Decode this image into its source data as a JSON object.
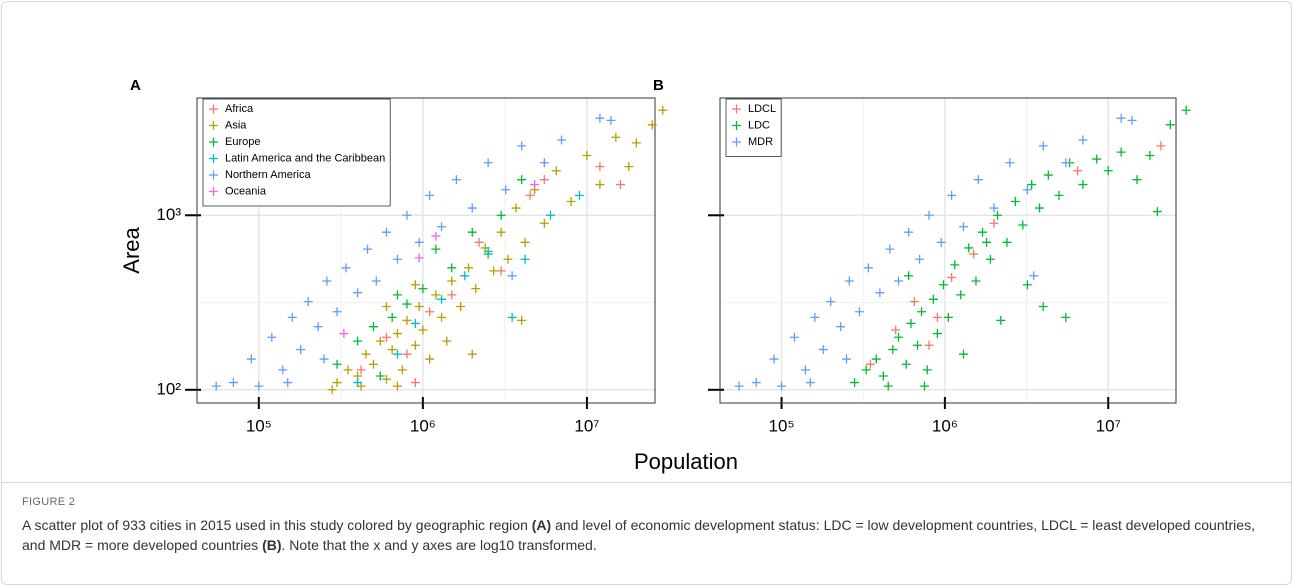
{
  "figure": {
    "xlabel": "Population",
    "label": "FIGURE 2",
    "caption": [
      {
        "text": "A scatter plot of 933 cities in 2015 used in this study colored by geographic region ",
        "bold": false
      },
      {
        "text": "(A)",
        "bold": true
      },
      {
        "text": " and level of economic development status: LDC = low development countries, LDCL = least developed countries, and MDR = more developed countries ",
        "bold": false
      },
      {
        "text": "(B)",
        "bold": true
      },
      {
        "text": ". Note that the x and y axes are log10 transformed.",
        "bold": false
      }
    ]
  },
  "chart_data": [
    {
      "type": "scatter",
      "panel": "A",
      "ylabel": "Area",
      "log_x": true,
      "log_y": true,
      "grid": true,
      "legend": "top-left",
      "ytick_labels": true,
      "xlim": [
        42000,
        26000000
      ],
      "ylim": [
        84,
        4700
      ],
      "xticks": [
        {
          "value": 100000,
          "label": "10⁵"
        },
        {
          "value": 1000000,
          "label": "10⁶"
        },
        {
          "value": 10000000,
          "label": "10⁷"
        }
      ],
      "yticks": [
        {
          "value": 100,
          "label": "10²"
        },
        {
          "value": 1000,
          "label": "10³"
        }
      ],
      "xminor": [
        316228,
        3162278
      ],
      "yminor": [
        316
      ],
      "series": [
        {
          "name": "Africa",
          "color": "#F8766D",
          "x": [
            420000,
            600000,
            800000,
            1100000,
            1500000,
            2200000,
            3000000,
            4500000,
            5500000,
            12000000,
            16000000,
            900000
          ],
          "values": [
            130,
            200,
            160,
            280,
            350,
            700,
            480,
            1300,
            1600,
            1900,
            1500,
            110
          ]
        },
        {
          "name": "Asia",
          "color": "#B79F00",
          "x": [
            300000,
            350000,
            400000,
            450000,
            500000,
            550000,
            600000,
            650000,
            700000,
            750000,
            800000,
            900000,
            950000,
            1000000,
            1100000,
            1200000,
            1300000,
            1500000,
            1700000,
            1900000,
            2100000,
            2400000,
            2700000,
            3000000,
            3300000,
            3700000,
            4200000,
            4800000,
            5500000,
            6500000,
            8000000,
            10000000,
            12000000,
            15000000,
            18000000,
            20000000,
            25000000,
            29000000,
            280000,
            420000,
            700000,
            1400000,
            2000000,
            4000000,
            900000,
            600000
          ],
          "values": [
            110,
            130,
            120,
            160,
            140,
            190,
            115,
            170,
            210,
            130,
            250,
            180,
            300,
            220,
            150,
            350,
            260,
            420,
            300,
            500,
            380,
            650,
            480,
            800,
            560,
            1100,
            700,
            1400,
            900,
            1800,
            1200,
            2200,
            1500,
            2800,
            1900,
            2600,
            3300,
            4000,
            100,
            105,
            105,
            190,
            160,
            250,
            400,
            300
          ]
        },
        {
          "name": "Europe",
          "color": "#00BA38",
          "x": [
            300000,
            400000,
            500000,
            650000,
            800000,
            1000000,
            1200000,
            1500000,
            2000000,
            3000000,
            4000000,
            550000,
            700000,
            2500000
          ],
          "values": [
            140,
            190,
            230,
            260,
            310,
            380,
            640,
            500,
            800,
            1000,
            1600,
            120,
            350,
            600
          ]
        },
        {
          "name": "Latin America and the Caribbean",
          "color": "#00BFC4",
          "x": [
            400000,
            700000,
            900000,
            1300000,
            1800000,
            2500000,
            3500000,
            4200000,
            6000000,
            9000000
          ],
          "values": [
            110,
            160,
            240,
            330,
            450,
            620,
            260,
            560,
            1000,
            1300
          ]
        },
        {
          "name": "Northern America",
          "color": "#619CFF",
          "x": [
            55000,
            70000,
            90000,
            100000,
            120000,
            140000,
            160000,
            180000,
            200000,
            230000,
            260000,
            300000,
            340000,
            400000,
            460000,
            520000,
            600000,
            700000,
            800000,
            950000,
            1100000,
            1300000,
            1600000,
            2000000,
            2500000,
            3200000,
            4000000,
            5500000,
            7000000,
            12000000,
            14000000,
            150000,
            250000,
            3500000
          ],
          "values": [
            105,
            110,
            150,
            105,
            200,
            130,
            260,
            170,
            320,
            230,
            420,
            280,
            500,
            360,
            640,
            420,
            800,
            560,
            1000,
            700,
            1300,
            860,
            1600,
            1100,
            2000,
            1400,
            2500,
            2000,
            2700,
            3600,
            3500,
            110,
            150,
            450
          ]
        },
        {
          "name": "Oceania",
          "color": "#F564E3",
          "x": [
            330000,
            950000,
            1200000,
            4800000
          ],
          "values": [
            210,
            570,
            760,
            1500
          ]
        }
      ]
    },
    {
      "type": "scatter",
      "panel": "B",
      "log_x": true,
      "log_y": true,
      "grid": true,
      "legend": "top-left",
      "ytick_labels": false,
      "xlim": [
        42000,
        26000000
      ],
      "ylim": [
        84,
        4700
      ],
      "xticks": [
        {
          "value": 100000,
          "label": "10⁵"
        },
        {
          "value": 1000000,
          "label": "10⁶"
        },
        {
          "value": 10000000,
          "label": "10⁷"
        }
      ],
      "yticks": [
        100,
        1000
      ],
      "xminor": [
        316228,
        3162278
      ],
      "yminor": [
        316
      ],
      "series": [
        {
          "name": "LDCL",
          "color": "#F8766D",
          "x": [
            350000,
            500000,
            650000,
            800000,
            1100000,
            1500000,
            2000000,
            6500000,
            21000000,
            900000
          ],
          "values": [
            140,
            220,
            320,
            180,
            440,
            600,
            900,
            1800,
            2500,
            260
          ]
        },
        {
          "name": "LDC",
          "color": "#00BA38",
          "x": [
            280000,
            330000,
            380000,
            420000,
            480000,
            520000,
            580000,
            620000,
            680000,
            720000,
            780000,
            850000,
            900000,
            980000,
            1050000,
            1150000,
            1250000,
            1400000,
            1550000,
            1700000,
            1900000,
            2100000,
            2400000,
            2700000,
            3000000,
            3400000,
            3800000,
            4300000,
            5000000,
            5800000,
            7000000,
            8500000,
            10000000,
            12000000,
            15000000,
            18000000,
            20000000,
            24000000,
            30000000,
            450000,
            750000,
            1300000,
            2200000,
            4000000,
            5500000,
            600000,
            1800000,
            3200000
          ],
          "values": [
            110,
            130,
            150,
            120,
            170,
            200,
            140,
            240,
            180,
            280,
            130,
            330,
            210,
            400,
            260,
            520,
            350,
            650,
            420,
            800,
            560,
            1000,
            700,
            1200,
            880,
            1500,
            1100,
            1700,
            1300,
            2000,
            1500,
            2100,
            1800,
            2300,
            1600,
            2200,
            1050,
            3300,
            4000,
            105,
            105,
            160,
            250,
            300,
            260,
            450,
            700,
            400
          ]
        },
        {
          "name": "MDR",
          "color": "#619CFF",
          "x": [
            55000,
            70000,
            90000,
            100000,
            120000,
            140000,
            160000,
            180000,
            200000,
            230000,
            260000,
            300000,
            340000,
            400000,
            460000,
            520000,
            600000,
            700000,
            800000,
            950000,
            1100000,
            1300000,
            1600000,
            2000000,
            2500000,
            3200000,
            4000000,
            5500000,
            7000000,
            12000000,
            14000000,
            150000,
            250000,
            3500000
          ],
          "values": [
            105,
            110,
            150,
            105,
            200,
            130,
            260,
            170,
            320,
            230,
            420,
            280,
            500,
            360,
            640,
            420,
            800,
            560,
            1000,
            700,
            1300,
            860,
            1600,
            1100,
            2000,
            1400,
            2500,
            2000,
            2700,
            3600,
            3500,
            110,
            150,
            450
          ]
        }
      ]
    }
  ]
}
